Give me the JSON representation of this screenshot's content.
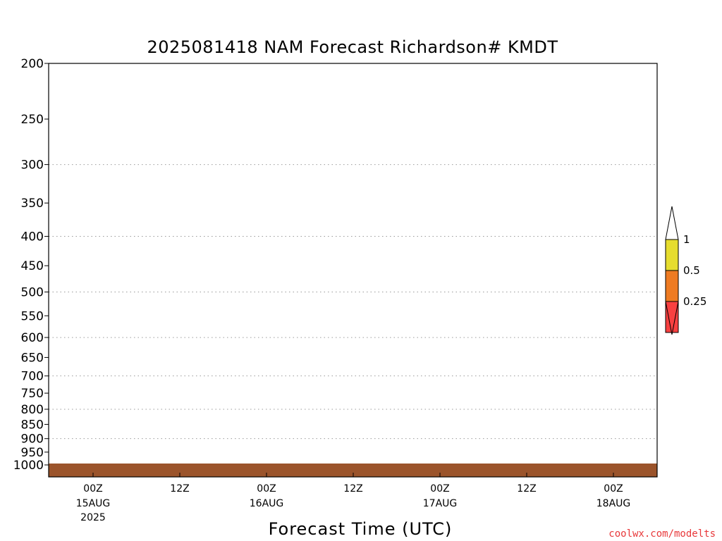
{
  "chart_data": {
    "type": "heatmap",
    "title": "2025081418 NAM Forecast Richardson# KMDT",
    "xlabel": "Forecast Time (UTC)",
    "ylabel": "",
    "y_scale": "log",
    "y_reversed": true,
    "y_ticks": [
      "200",
      "250",
      "300",
      "350",
      "400",
      "450",
      "500",
      "550",
      "600",
      "650",
      "700",
      "750",
      "800",
      "850",
      "900",
      "950",
      "1000"
    ],
    "x_ticks": [
      {
        "top": "00Z",
        "mid": "15AUG",
        "bottom": "2025"
      },
      {
        "top": "12Z",
        "mid": "",
        "bottom": ""
      },
      {
        "top": "00Z",
        "mid": "16AUG",
        "bottom": ""
      },
      {
        "top": "12Z",
        "mid": "",
        "bottom": ""
      },
      {
        "top": "00Z",
        "mid": "17AUG",
        "bottom": ""
      },
      {
        "top": "12Z",
        "mid": "",
        "bottom": ""
      },
      {
        "top": "00Z",
        "mid": "18AUG",
        "bottom": ""
      }
    ],
    "color_scale": [
      {
        "label": "1",
        "color": "#e6dd2e"
      },
      {
        "label": "0.5",
        "color": "#ee7b22"
      },
      {
        "label": "0.25",
        "color": "#f84040"
      }
    ],
    "grid": true,
    "cells": []
  },
  "credit": "coolwx.com/modelts",
  "colors": {
    "yellow": "#e6dd2e",
    "orange": "#ee7b22",
    "red": "#f84040",
    "ground": "#9b542b"
  }
}
